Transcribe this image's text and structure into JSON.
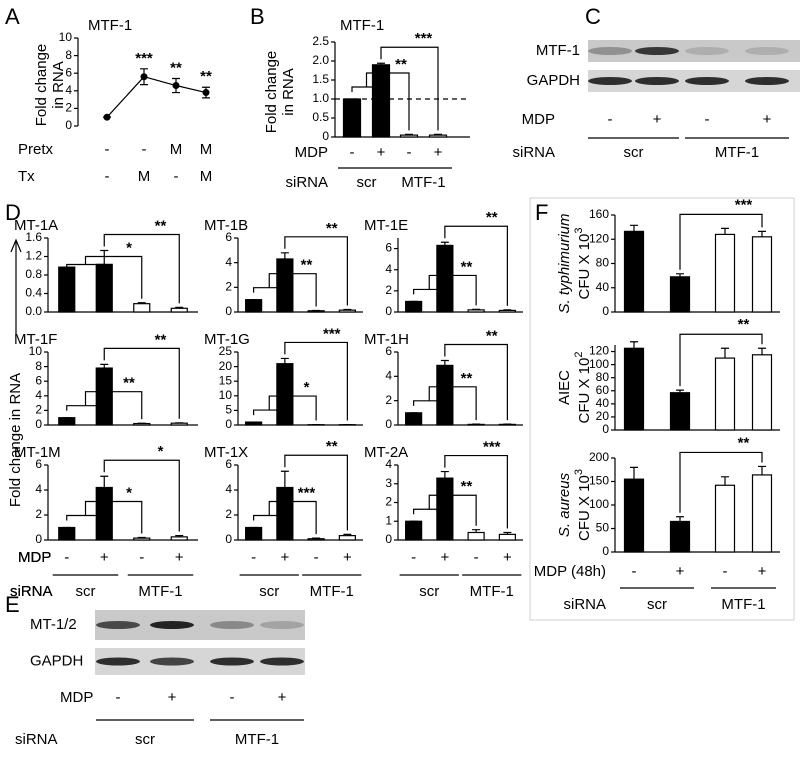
{
  "chart_data": [
    {
      "panel": "A",
      "type": "line",
      "title": "MTF-1",
      "ylabel": [
        "Fold change",
        "in RNA"
      ],
      "values": [
        1,
        5.6,
        4.6,
        3.8
      ],
      "errors": [
        0,
        0.9,
        0.8,
        0.6
      ],
      "color": "#000000",
      "ylim": [
        0,
        10
      ],
      "yticks": [
        0,
        2,
        4,
        6,
        8,
        10
      ],
      "annotations": [
        "***",
        "**",
        "**"
      ],
      "rows": [
        {
          "name": "Pretx",
          "labels": [
            "-",
            "-",
            "M",
            "M"
          ]
        },
        {
          "name": "Tx",
          "labels": [
            "-",
            "M",
            "-",
            "M"
          ]
        }
      ]
    },
    {
      "panel": "B",
      "type": "bar",
      "title": "MTF-1",
      "ylabel": [
        "Fold change",
        "in RNA"
      ],
      "values": [
        1,
        1.9,
        0.05,
        0.05
      ],
      "errors": [
        0,
        0.04,
        0.02,
        0.02
      ],
      "colors": [
        "#000000",
        "#000000",
        "#ffffff",
        "#ffffff"
      ],
      "ylim": [
        0,
        2.5
      ],
      "yticks": [
        0,
        0.5,
        {
          "value": 1,
          "label": "1.0"
        },
        1.5,
        {
          "value": 2,
          "label": "2.0"
        },
        2.5
      ],
      "reference_line": 1,
      "annotations": [
        "***",
        "**"
      ],
      "rows": [
        {
          "name": "MDP",
          "labels": [
            "-",
            "+",
            "-",
            "+"
          ]
        }
      ],
      "groups": {
        "name": "siRNA",
        "labels": [
          "scr",
          "MTF-1"
        ]
      }
    },
    {
      "panel": "C",
      "type": "blot",
      "bands": [
        "MTF-1",
        "GAPDH"
      ],
      "rows": [
        {
          "name": "MDP",
          "labels": [
            "-",
            "+",
            "-",
            "+"
          ]
        }
      ],
      "groups": {
        "name": "siRNA",
        "labels": [
          "scr",
          "MTF-1"
        ]
      }
    },
    {
      "type": "bar",
      "title": "MT-1A",
      "values": [
        0.97,
        1.03,
        0.18,
        0.08
      ],
      "errors": [
        0,
        0.3,
        0.02,
        0.02
      ],
      "colors": [
        "#000000",
        "#000000",
        "#ffffff",
        "#ffffff"
      ],
      "ylim": [
        0,
        1.6
      ],
      "yticks": [
        {
          "value": 0,
          "label": "0.0"
        },
        0.4,
        0.8,
        1.2,
        1.6
      ],
      "annotations": [
        "**",
        "*"
      ]
    },
    {
      "type": "bar",
      "title": "MT-1B",
      "values": [
        1,
        4.3,
        0.1,
        0.15
      ],
      "errors": [
        0,
        0.5,
        0.02,
        0.05
      ],
      "colors": [
        "#000000",
        "#000000",
        "#ffffff",
        "#ffffff"
      ],
      "ylim": [
        0,
        6
      ],
      "yticks": [
        0,
        2,
        4,
        6
      ],
      "annotations": [
        "**",
        "**"
      ]
    },
    {
      "type": "bar",
      "title": "MT-1E",
      "values": [
        1,
        6.3,
        0.2,
        0.15
      ],
      "errors": [
        0,
        0.3,
        0.05,
        0.05
      ],
      "colors": [
        "#000000",
        "#000000",
        "#ffffff",
        "#ffffff"
      ],
      "ylim": [
        0,
        7
      ],
      "yticks": [
        0,
        2,
        4,
        6
      ],
      "annotations": [
        "**",
        "**"
      ]
    },
    {
      "type": "bar",
      "title": "MT-1F",
      "values": [
        1,
        7.8,
        0.2,
        0.25
      ],
      "errors": [
        0,
        0.5,
        0.05,
        0.05
      ],
      "colors": [
        "#000000",
        "#000000",
        "#ffffff",
        "#ffffff"
      ],
      "ylim": [
        0,
        10
      ],
      "yticks": [
        0,
        2,
        4,
        6,
        8,
        10
      ],
      "annotations": [
        "**",
        "**"
      ]
    },
    {
      "type": "bar",
      "title": "MT-1G",
      "values": [
        1,
        21,
        0.1,
        0.1
      ],
      "errors": [
        0,
        1.8,
        0.05,
        0.05
      ],
      "colors": [
        "#000000",
        "#000000",
        "#ffffff",
        "#ffffff"
      ],
      "ylim": [
        0,
        25
      ],
      "yticks": [
        0,
        5,
        10,
        15,
        20,
        25
      ],
      "annotations": [
        "***",
        "*"
      ]
    },
    {
      "type": "bar",
      "title": "MT-1H",
      "values": [
        1,
        4.9,
        0.05,
        0.05
      ],
      "errors": [
        0,
        0.4,
        0.02,
        0.02
      ],
      "colors": [
        "#000000",
        "#000000",
        "#ffffff",
        "#ffffff"
      ],
      "ylim": [
        0,
        6
      ],
      "yticks": [
        0,
        2,
        4,
        6
      ],
      "annotations": [
        "**",
        "**"
      ]
    },
    {
      "type": "bar",
      "title": "MT-1M",
      "values": [
        1,
        4.2,
        0.15,
        0.25
      ],
      "errors": [
        0,
        0.9,
        0.05,
        0.1
      ],
      "colors": [
        "#000000",
        "#000000",
        "#ffffff",
        "#ffffff"
      ],
      "ylim": [
        0,
        6
      ],
      "yticks": [
        0,
        2,
        4,
        6
      ],
      "annotations": [
        "*",
        "*"
      ]
    },
    {
      "type": "bar",
      "title": "MT-1X",
      "values": [
        1,
        4.2,
        0.1,
        0.35
      ],
      "errors": [
        0,
        1.3,
        0.05,
        0.1
      ],
      "colors": [
        "#000000",
        "#000000",
        "#ffffff",
        "#ffffff"
      ],
      "ylim": [
        0,
        6
      ],
      "yticks": [
        0,
        2,
        4,
        6
      ],
      "annotations": [
        "**",
        "***"
      ]
    },
    {
      "type": "bar",
      "title": "MT-2A",
      "values": [
        1,
        3.3,
        0.4,
        0.3
      ],
      "errors": [
        0,
        0.35,
        0.15,
        0.1
      ],
      "colors": [
        "#000000",
        "#000000",
        "#ffffff",
        "#ffffff"
      ],
      "ylim": [
        0,
        4
      ],
      "yticks": [
        0,
        1,
        2,
        3,
        4
      ],
      "annotations": [
        "***",
        "**"
      ]
    },
    {
      "panel": "E",
      "type": "blot",
      "bands": [
        "MT-1/2",
        "GAPDH"
      ],
      "rows": [
        {
          "name": "MDP",
          "labels": [
            "-",
            "+",
            "-",
            "+"
          ]
        }
      ],
      "groups": {
        "name": "siRNA",
        "labels": [
          "scr",
          "MTF-1"
        ]
      }
    },
    {
      "type": "bar",
      "ylabel": "S. typhimurium",
      "ylabel_unit": "CFU X 10",
      "ylabel_exp": "3",
      "values": [
        133,
        58,
        128,
        124
      ],
      "errors": [
        10,
        5,
        10,
        9
      ],
      "colors": [
        "#000000",
        "#000000",
        "#ffffff",
        "#ffffff"
      ],
      "ylim": [
        0,
        160
      ],
      "yticks": [
        0,
        40,
        80,
        120,
        160
      ],
      "annotations": [
        "***"
      ]
    },
    {
      "type": "bar",
      "ylabel": "AIEC",
      "ylabel_unit": "CFU X 10",
      "ylabel_exp": "2",
      "values": [
        125,
        57,
        110,
        115
      ],
      "errors": [
        10,
        4,
        15,
        10
      ],
      "colors": [
        "#000000",
        "#000000",
        "#ffffff",
        "#ffffff"
      ],
      "ylim": [
        0,
        130
      ],
      "yticks": [
        0,
        20,
        40,
        60,
        80,
        100,
        120
      ],
      "annotations": [
        "**"
      ]
    },
    {
      "type": "bar",
      "ylabel": "S. aureus",
      "ylabel_unit": "CFU X 10",
      "ylabel_exp": "3",
      "values": [
        155,
        65,
        142,
        164
      ],
      "errors": [
        25,
        10,
        18,
        18
      ],
      "colors": [
        "#000000",
        "#000000",
        "#ffffff",
        "#ffffff"
      ],
      "ylim": [
        0,
        200
      ],
      "yticks": [
        0,
        50,
        100,
        150,
        200
      ],
      "annotations": [
        "**"
      ]
    }
  ],
  "panel_d": {
    "panel": "D",
    "ylabel": "Fold change in RNA",
    "rows": [
      {
        "name": "MDP",
        "labels": [
          "-",
          "+",
          "-",
          "+"
        ]
      }
    ],
    "groups": {
      "name": "siRNA",
      "labels": [
        "scr",
        "MTF-1"
      ]
    }
  },
  "panel_f": {
    "panel": "F",
    "rows": [
      {
        "name": "MDP (48h)",
        "labels": [
          "-",
          "+",
          "-",
          "+"
        ]
      }
    ],
    "groups": {
      "name": "siRNA",
      "labels": [
        "scr",
        "MTF-1"
      ]
    }
  }
}
